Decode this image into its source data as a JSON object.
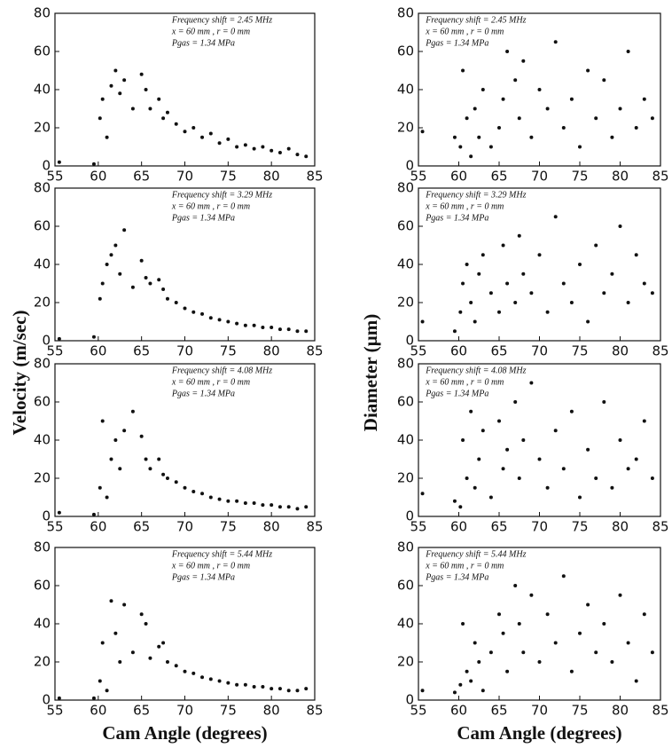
{
  "figure": {
    "left_ylabel": "Velocity (m/sec)",
    "right_ylabel": "Diameter (µm)"
  },
  "chart_data": [
    {
      "type": "scatter",
      "annotations": [
        "Frequency shift = 2.45 MHz",
        "x = 60 mm , r = 0 mm",
        "Pgas = 1.34 MPa"
      ],
      "color": "#111111",
      "x": [
        55.5,
        59.5,
        60.2,
        60.5,
        61,
        61.5,
        62,
        62.5,
        63,
        64,
        65,
        65.5,
        66,
        67,
        67.5,
        68,
        69,
        70,
        71,
        72,
        73,
        74,
        75,
        76,
        77,
        78,
        79,
        80,
        81,
        82,
        83,
        84
      ],
      "y": [
        2,
        1,
        25,
        35,
        15,
        42,
        50,
        38,
        45,
        30,
        48,
        40,
        30,
        35,
        25,
        28,
        22,
        18,
        20,
        15,
        17,
        12,
        14,
        10,
        11,
        9,
        10,
        8,
        7,
        9,
        6,
        5
      ],
      "xlim": [
        55,
        85
      ],
      "xticks": [
        55,
        60,
        65,
        70,
        75,
        80,
        85
      ],
      "ylim": [
        0,
        80
      ],
      "yticks": [
        0,
        20,
        40,
        60,
        80
      ]
    },
    {
      "type": "scatter",
      "annotations": [
        "Frequency shift = 3.29 MHz",
        "x = 60 mm , r = 0 mm",
        "Pgas = 1.34 MPa"
      ],
      "color": "#111111",
      "x": [
        55.5,
        59.5,
        60.2,
        60.5,
        61,
        61.5,
        62,
        62.5,
        63,
        64,
        65,
        65.5,
        66,
        67,
        67.5,
        68,
        69,
        70,
        71,
        72,
        73,
        74,
        75,
        76,
        77,
        78,
        79,
        80,
        81,
        82,
        83,
        84
      ],
      "y": [
        1,
        2,
        22,
        30,
        40,
        45,
        50,
        35,
        58,
        28,
        42,
        33,
        30,
        32,
        27,
        22,
        20,
        17,
        15,
        14,
        12,
        11,
        10,
        9,
        8,
        8,
        7,
        7,
        6,
        6,
        5,
        5
      ],
      "xlim": [
        55,
        85
      ],
      "xticks": [
        55,
        60,
        65,
        70,
        75,
        80,
        85
      ],
      "ylim": [
        0,
        80
      ],
      "yticks": [
        0,
        20,
        40,
        60,
        80
      ]
    },
    {
      "type": "scatter",
      "annotations": [
        "Frequency shift = 4.08 MHz",
        "x = 60 mm , r = 0 mm",
        "Pgas = 1.34 MPa"
      ],
      "color": "#111111",
      "x": [
        55.5,
        59.5,
        60.2,
        60.5,
        61,
        61.5,
        62,
        62.5,
        63,
        64,
        65,
        65.5,
        66,
        67,
        67.5,
        68,
        69,
        70,
        71,
        72,
        73,
        74,
        75,
        76,
        77,
        78,
        79,
        80,
        81,
        82,
        83,
        84
      ],
      "y": [
        2,
        1,
        15,
        50,
        10,
        30,
        40,
        25,
        45,
        55,
        42,
        30,
        25,
        30,
        22,
        20,
        18,
        15,
        13,
        12,
        10,
        9,
        8,
        8,
        7,
        7,
        6,
        6,
        5,
        5,
        4,
        5
      ],
      "xlim": [
        55,
        85
      ],
      "xticks": [
        55,
        60,
        65,
        70,
        75,
        80,
        85
      ],
      "ylim": [
        0,
        80
      ],
      "yticks": [
        0,
        20,
        40,
        60,
        80
      ]
    },
    {
      "type": "scatter",
      "annotations": [
        "Frequency shift = 5.44 MHz",
        "x = 60 mm , r = 0 mm",
        "Pgas = 1.34 MPa"
      ],
      "color": "#111111",
      "xlabel": "Cam Angle (degrees)",
      "x": [
        55.5,
        59.5,
        60.2,
        60.5,
        61,
        61.5,
        62,
        62.5,
        63,
        64,
        65,
        65.5,
        66,
        67,
        67.5,
        68,
        69,
        70,
        71,
        72,
        73,
        74,
        75,
        76,
        77,
        78,
        79,
        80,
        81,
        82,
        83,
        84
      ],
      "y": [
        1,
        1,
        10,
        30,
        5,
        52,
        35,
        20,
        50,
        25,
        45,
        40,
        22,
        28,
        30,
        20,
        18,
        15,
        14,
        12,
        11,
        10,
        9,
        8,
        8,
        7,
        7,
        6,
        6,
        5,
        5,
        6
      ],
      "xlim": [
        55,
        85
      ],
      "xticks": [
        55,
        60,
        65,
        70,
        75,
        80,
        85
      ],
      "ylim": [
        0,
        80
      ],
      "yticks": [
        0,
        20,
        40,
        60,
        80
      ]
    },
    {
      "type": "scatter",
      "annotations": [
        "Frequency shift = 2.45 MHz",
        "x = 60 mm , r = 0 mm",
        "Pgas = 1.34 MPa"
      ],
      "color": "#111111",
      "x": [
        55.5,
        59.5,
        60.2,
        60.5,
        61,
        61.5,
        62,
        62.5,
        63,
        64,
        65,
        65.5,
        66,
        67,
        67.5,
        68,
        69,
        70,
        71,
        72,
        73,
        74,
        75,
        76,
        77,
        78,
        79,
        80,
        81,
        82,
        83,
        84
      ],
      "y": [
        18,
        15,
        10,
        50,
        25,
        5,
        30,
        15,
        40,
        10,
        20,
        35,
        60,
        45,
        25,
        55,
        15,
        40,
        30,
        65,
        20,
        35,
        10,
        50,
        25,
        45,
        15,
        30,
        60,
        20,
        35,
        25
      ],
      "xlim": [
        55,
        85
      ],
      "xticks": [
        55,
        60,
        65,
        70,
        75,
        80,
        85
      ],
      "ylim": [
        0,
        80
      ],
      "yticks": [
        0,
        20,
        40,
        60,
        80
      ]
    },
    {
      "type": "scatter",
      "annotations": [
        "Frequency shift = 3.29 MHz",
        "x = 60 mm , r = 0 mm",
        "Pgas = 1.34 MPa"
      ],
      "color": "#111111",
      "x": [
        55.5,
        59.5,
        60.2,
        60.5,
        61,
        61.5,
        62,
        62.5,
        63,
        64,
        65,
        65.5,
        66,
        67,
        67.5,
        68,
        69,
        70,
        71,
        72,
        73,
        74,
        75,
        76,
        77,
        78,
        79,
        80,
        81,
        82,
        83,
        84
      ],
      "y": [
        10,
        5,
        15,
        30,
        40,
        20,
        10,
        35,
        45,
        25,
        15,
        50,
        30,
        20,
        55,
        35,
        25,
        45,
        15,
        65,
        30,
        20,
        40,
        10,
        50,
        25,
        35,
        60,
        20,
        45,
        30,
        25
      ],
      "xlim": [
        55,
        85
      ],
      "xticks": [
        55,
        60,
        65,
        70,
        75,
        80,
        85
      ],
      "ylim": [
        0,
        80
      ],
      "yticks": [
        0,
        20,
        40,
        60,
        80
      ]
    },
    {
      "type": "scatter",
      "annotations": [
        "Frequency shift = 4.08 MHz",
        "x = 60 mm , r = 0 mm",
        "Pgas = 1.34 MPa"
      ],
      "color": "#111111",
      "x": [
        55.5,
        59.5,
        60.2,
        60.5,
        61,
        61.5,
        62,
        62.5,
        63,
        64,
        65,
        65.5,
        66,
        67,
        67.5,
        68,
        69,
        70,
        71,
        72,
        73,
        74,
        75,
        76,
        77,
        78,
        79,
        80,
        81,
        82,
        83,
        84
      ],
      "y": [
        12,
        8,
        5,
        40,
        20,
        55,
        15,
        30,
        45,
        10,
        50,
        25,
        35,
        60,
        20,
        40,
        70,
        30,
        15,
        45,
        25,
        55,
        10,
        35,
        20,
        60,
        15,
        40,
        25,
        30,
        50,
        20
      ],
      "xlim": [
        55,
        85
      ],
      "xticks": [
        55,
        60,
        65,
        70,
        75,
        80,
        85
      ],
      "ylim": [
        0,
        80
      ],
      "yticks": [
        0,
        20,
        40,
        60,
        80
      ]
    },
    {
      "type": "scatter",
      "annotations": [
        "Frequency shift = 5.44 MHz",
        "x = 60 mm , r = 0 mm",
        "Pgas = 1.34 MPa"
      ],
      "color": "#111111",
      "xlabel": "Cam Angle (degrees)",
      "x": [
        55.5,
        59.5,
        60.2,
        60.5,
        61,
        61.5,
        62,
        62.5,
        63,
        64,
        65,
        65.5,
        66,
        67,
        67.5,
        68,
        69,
        70,
        71,
        72,
        73,
        74,
        75,
        76,
        77,
        78,
        79,
        80,
        81,
        82,
        83,
        84
      ],
      "y": [
        5,
        4,
        8,
        40,
        15,
        10,
        30,
        20,
        5,
        25,
        45,
        35,
        15,
        60,
        40,
        25,
        55,
        20,
        45,
        30,
        65,
        15,
        35,
        50,
        25,
        40,
        20,
        55,
        30,
        10,
        45,
        25
      ],
      "xlim": [
        55,
        85
      ],
      "xticks": [
        55,
        60,
        65,
        70,
        75,
        80,
        85
      ],
      "ylim": [
        0,
        80
      ],
      "yticks": [
        0,
        20,
        40,
        60,
        80
      ]
    }
  ]
}
